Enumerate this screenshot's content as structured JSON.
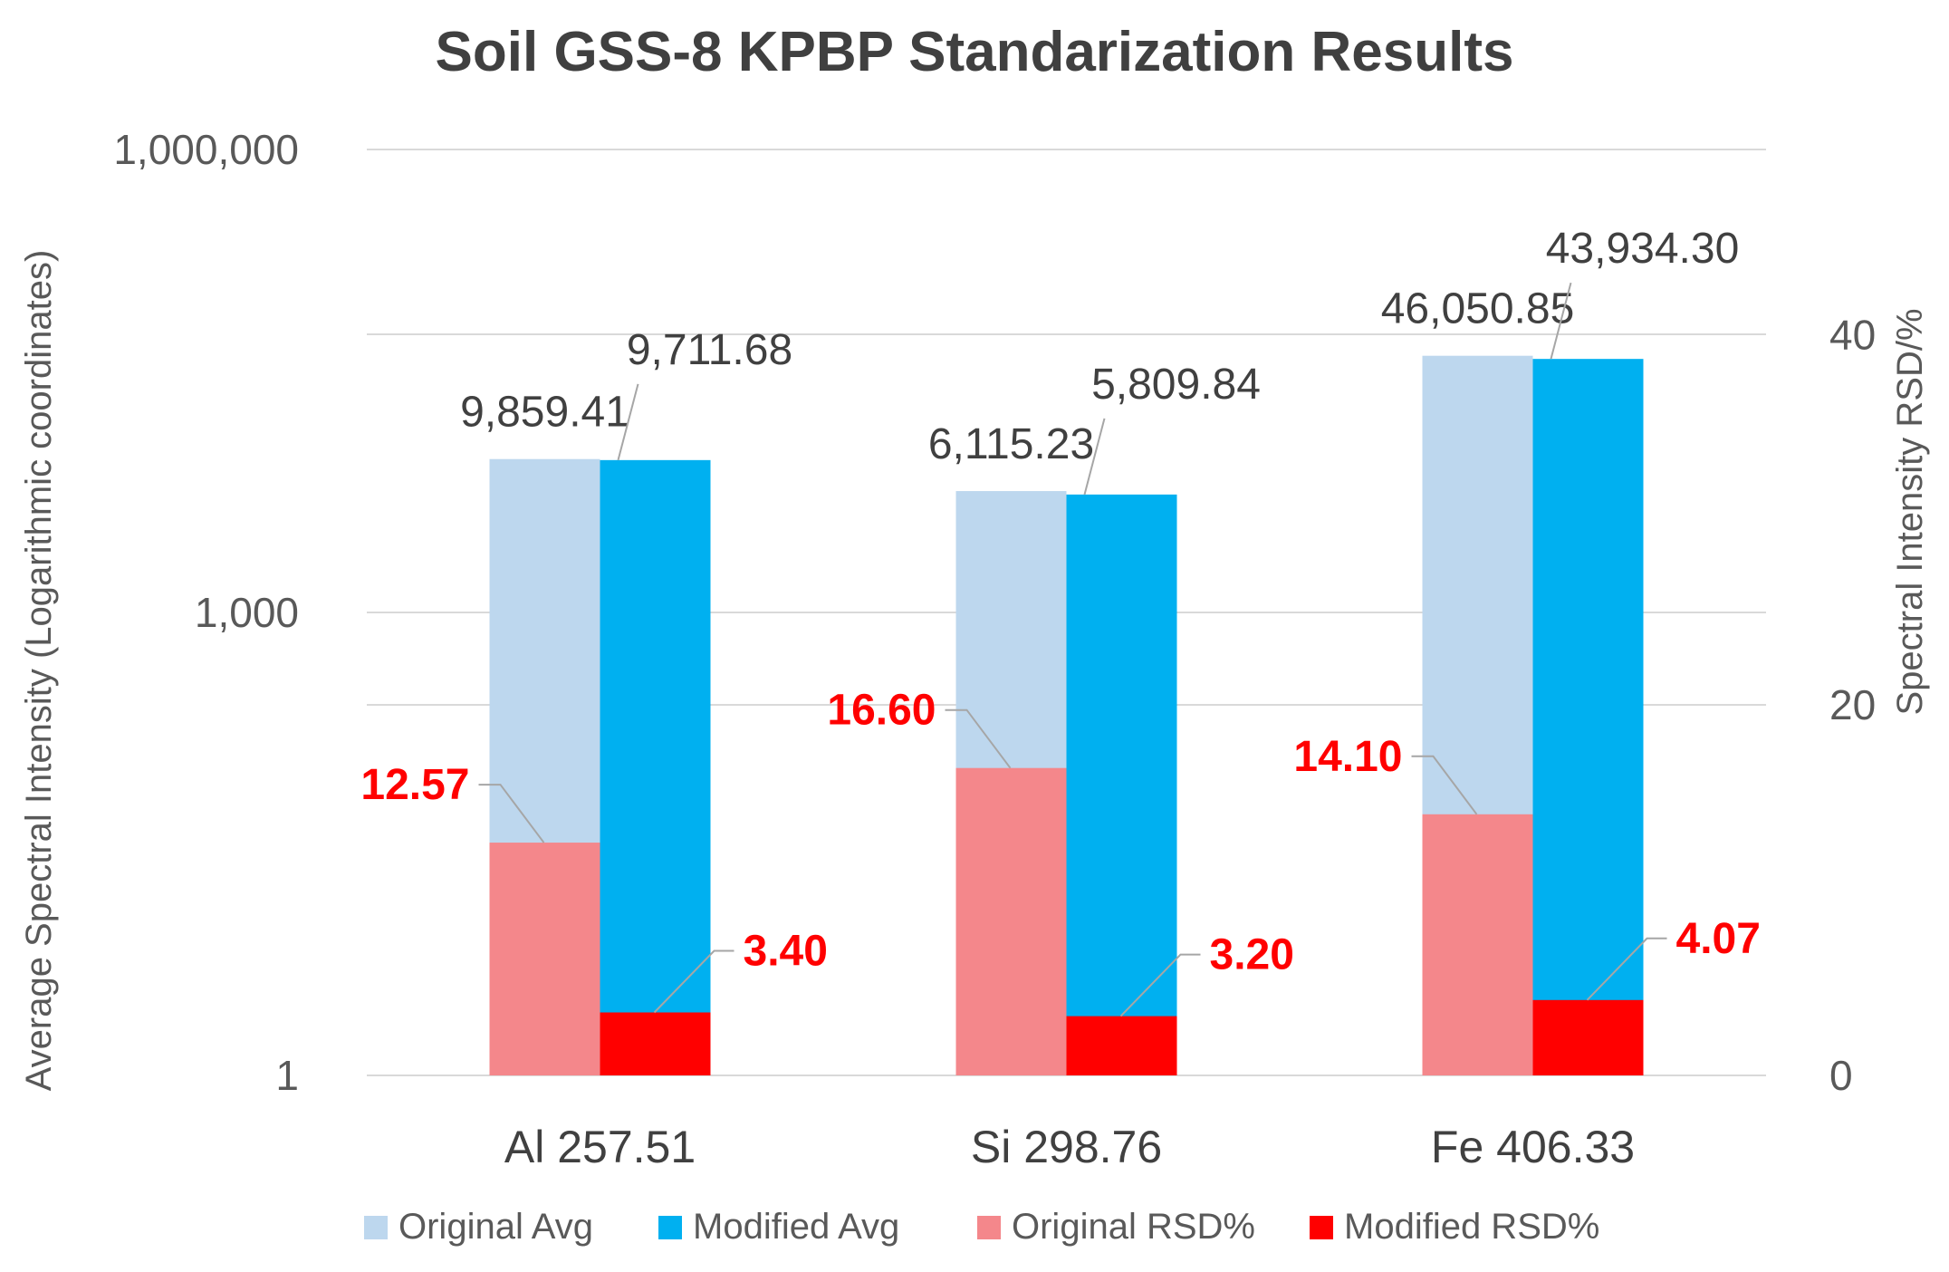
{
  "chart_data": {
    "type": "bar",
    "title": "Soil GSS-8 KPBP Standarization Results",
    "categories": [
      "Al 257.51",
      "Si 298.76",
      "Fe 406.33"
    ],
    "y_left": {
      "label": "Average Spectral Intensity (Logarithmic coordinates)",
      "scale": "log",
      "range": [
        1,
        1000000
      ],
      "ticks": [
        1,
        1000,
        1000000
      ],
      "tick_labels": [
        "1",
        "1,000",
        "1,000,000"
      ]
    },
    "y_right": {
      "label": "Spectral Intensity RSD/%",
      "scale": "linear",
      "range": [
        0,
        50
      ],
      "ticks": [
        0,
        20,
        40
      ],
      "tick_labels": [
        "0",
        "20",
        "40"
      ]
    },
    "series": [
      {
        "name": "Original Avg",
        "axis": "left",
        "color": "#BDD7EE",
        "values": [
          9859.41,
          6115.23,
          46050.85
        ],
        "labels": [
          "9,859.41",
          "6,115.23",
          "46,050.85"
        ]
      },
      {
        "name": "Modified Avg",
        "axis": "left",
        "color": "#00B0F0",
        "values": [
          9711.68,
          5809.84,
          43934.3
        ],
        "labels": [
          "9,711.68",
          "5,809.84",
          "43,934.30"
        ]
      },
      {
        "name": "Original RSD%",
        "axis": "right",
        "color": "#F4878B",
        "values": [
          12.57,
          16.6,
          14.1
        ],
        "labels": [
          "12.57",
          "16.60",
          "14.10"
        ]
      },
      {
        "name": "Modified RSD%",
        "axis": "right",
        "color": "#FF0000",
        "values": [
          3.4,
          3.2,
          4.07
        ],
        "labels": [
          "3.40",
          "3.20",
          "4.07"
        ]
      }
    ],
    "grid": true,
    "legend": "bottom",
    "colors": {
      "text": "#404040",
      "red_label": "#FF0000",
      "grid": "#D9D9D9",
      "leader": "#A6A6A6"
    }
  }
}
